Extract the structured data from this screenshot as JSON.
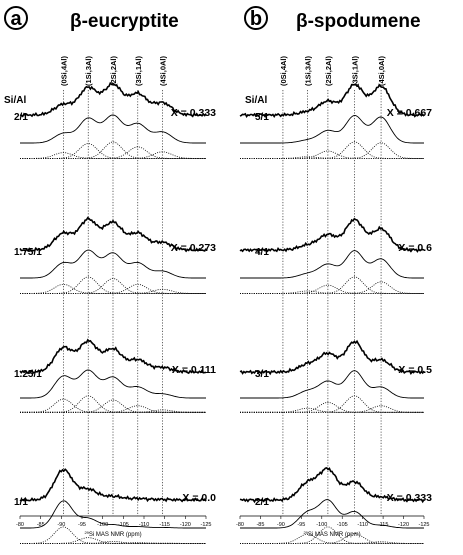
{
  "chart_data": [
    {
      "type": "line",
      "panel_letter": "a",
      "title": "β-eucryptite",
      "ratio_header": "Si/Al",
      "site_labels": [
        "(0Si,4Al)",
        "(1Si,3Al)",
        "(2Si,2Al)",
        "(3Si,1Al)",
        "(4Si,0Al)"
      ],
      "site_positions_ppm": [
        -90.5,
        -96.5,
        -102.5,
        -108.5,
        -114.5
      ],
      "xlabel_prefix": "29",
      "xlabel_main": "Si MAS NMR (ppm)",
      "xlim": [
        -80,
        -125
      ],
      "x_ticks": [
        -80,
        -85,
        -90,
        -95,
        -100,
        -105,
        -110,
        -115,
        -120,
        -125
      ],
      "spectra": [
        {
          "ratio": "2/1",
          "x_value": "X = 0.333",
          "peak_intensities": [
            0.35,
            0.9,
            1.0,
            0.7,
            0.4
          ]
        },
        {
          "ratio": "1.75/1",
          "x_value": "X = 0.273",
          "peak_intensities": [
            0.55,
            1.0,
            0.9,
            0.55,
            0.25
          ]
        },
        {
          "ratio": "1.25/1",
          "x_value": "X = 0.111",
          "peak_intensities": [
            0.8,
            1.0,
            0.75,
            0.4,
            0.15
          ]
        },
        {
          "ratio": "1/1",
          "x_value": "X = 0.0",
          "peak_intensities": [
            1.0,
            0.35,
            0.12,
            0.05,
            0.02
          ]
        }
      ]
    },
    {
      "type": "line",
      "panel_letter": "b",
      "title": "β-spodumene",
      "ratio_header": "Si/Al",
      "site_labels": [
        "(0Si,4Al)",
        "(1Si,3Al)",
        "(2Si,2Al)",
        "(3Si,1Al)",
        "(4Si,0Al)"
      ],
      "site_positions_ppm": [
        -90.5,
        -96.5,
        -101.5,
        -108.0,
        -114.5
      ],
      "xlabel_prefix": "29",
      "xlabel_main": "Si MAS NMR (ppm)",
      "xlim": [
        -80,
        -125
      ],
      "x_ticks": [
        -80,
        -85,
        -90,
        -95,
        -100,
        -105,
        -110,
        -115,
        -120,
        -125
      ],
      "spectra": [
        {
          "ratio": "5/1",
          "x_value": "X = 0.667",
          "peak_intensities": [
            0.0,
            0.1,
            0.45,
            1.0,
            0.95
          ]
        },
        {
          "ratio": "4/1",
          "x_value": "X = 0.6",
          "peak_intensities": [
            0.0,
            0.15,
            0.5,
            1.0,
            0.7
          ]
        },
        {
          "ratio": "3/1",
          "x_value": "X = 0.5",
          "peak_intensities": [
            0.0,
            0.25,
            0.6,
            1.0,
            0.4
          ]
        },
        {
          "ratio": "2/1",
          "x_value": "X = 0.333",
          "peak_intensities": [
            0.0,
            0.55,
            1.0,
            0.6,
            0.1
          ]
        }
      ]
    }
  ]
}
